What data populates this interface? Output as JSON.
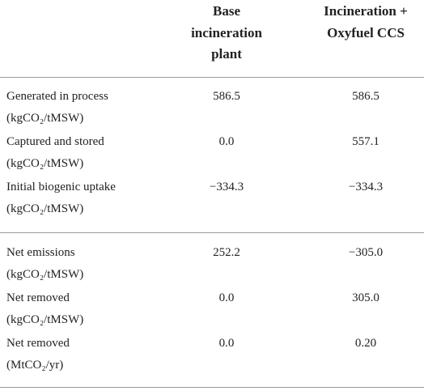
{
  "header": {
    "columns": [
      [
        "Base",
        "incineration",
        "plant"
      ],
      [
        "Incineration +",
        "Oxyfuel CCS"
      ]
    ]
  },
  "table": {
    "groups": [
      {
        "rows": [
          {
            "label": [
              "Generated in process",
              "(kgCO₂/tMSW)"
            ],
            "values": [
              "586.5",
              "586.5"
            ]
          },
          {
            "label": [
              "Captured and stored",
              "(kgCO₂/tMSW)"
            ],
            "values": [
              "0.0",
              "557.1"
            ]
          },
          {
            "label": [
              "Initial biogenic uptake",
              "(kgCO₂/tMSW)"
            ],
            "values": [
              "−334.3",
              "−334.3"
            ]
          }
        ]
      },
      {
        "rows": [
          {
            "label": [
              "Net emissions",
              "(kgCO₂/tMSW)"
            ],
            "values": [
              "252.2",
              "−305.0"
            ]
          },
          {
            "label": [
              "Net removed",
              "(kgCO₂/tMSW)"
            ],
            "values": [
              "0.0",
              "305.0"
            ]
          },
          {
            "label": [
              "Net removed",
              "(MtCO₂/yr)"
            ],
            "values": [
              "0.0",
              "0.20"
            ]
          }
        ]
      }
    ]
  }
}
